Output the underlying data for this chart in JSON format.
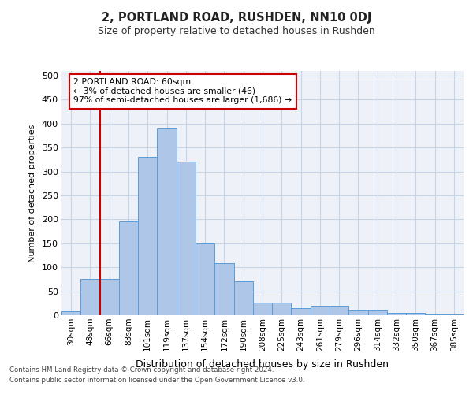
{
  "title": "2, PORTLAND ROAD, RUSHDEN, NN10 0DJ",
  "subtitle": "Size of property relative to detached houses in Rushden",
  "xlabel": "Distribution of detached houses by size in Rushden",
  "ylabel": "Number of detached properties",
  "categories": [
    "30sqm",
    "48sqm",
    "66sqm",
    "83sqm",
    "101sqm",
    "119sqm",
    "137sqm",
    "154sqm",
    "172sqm",
    "190sqm",
    "208sqm",
    "225sqm",
    "243sqm",
    "261sqm",
    "279sqm",
    "296sqm",
    "314sqm",
    "332sqm",
    "350sqm",
    "367sqm",
    "385sqm"
  ],
  "values": [
    8,
    75,
    75,
    195,
    330,
    390,
    320,
    150,
    108,
    70,
    27,
    27,
    15,
    20,
    20,
    10,
    10,
    5,
    5,
    2,
    2
  ],
  "bar_color": "#aec6e8",
  "bar_edge_color": "#5b9bd5",
  "grid_color": "#c8d4e8",
  "background_color": "#eef2f8",
  "vline_x": 2.0,
  "vline_color": "#cc0000",
  "annotation_text": "2 PORTLAND ROAD: 60sqm\n← 3% of detached houses are smaller (46)\n97% of semi-detached houses are larger (1,686) →",
  "annotation_box_color": "#ffffff",
  "annotation_box_edge_color": "#cc0000",
  "ylim": [
    0,
    510
  ],
  "yticks": [
    0,
    50,
    100,
    150,
    200,
    250,
    300,
    350,
    400,
    450,
    500
  ],
  "footnote1": "Contains HM Land Registry data © Crown copyright and database right 2024.",
  "footnote2": "Contains public sector information licensed under the Open Government Licence v3.0."
}
